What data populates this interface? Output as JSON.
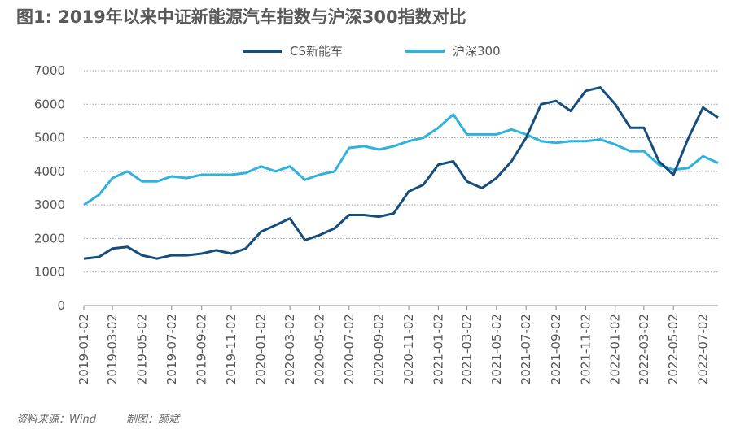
{
  "chart_data": {
    "type": "line",
    "title": "图1: 2019年以来中证新能源汽车指数与沪深300指数对比",
    "source": "资料来源：Wind",
    "credit": "制图：颜斌",
    "x": [
      "2019-01-02",
      "2019-02-02",
      "2019-03-02",
      "2019-04-02",
      "2019-05-02",
      "2019-06-02",
      "2019-07-02",
      "2019-08-02",
      "2019-09-02",
      "2019-10-02",
      "2019-11-02",
      "2019-12-02",
      "2020-01-02",
      "2020-02-02",
      "2020-03-02",
      "2020-04-02",
      "2020-05-02",
      "2020-06-02",
      "2020-07-02",
      "2020-08-02",
      "2020-09-02",
      "2020-10-02",
      "2020-11-02",
      "2020-12-02",
      "2021-01-02",
      "2021-02-02",
      "2021-03-02",
      "2021-04-02",
      "2021-05-02",
      "2021-06-02",
      "2021-07-02",
      "2021-08-02",
      "2021-09-02",
      "2021-10-02",
      "2021-11-02",
      "2021-12-02",
      "2022-01-02",
      "2022-02-02",
      "2022-03-02",
      "2022-04-02",
      "2022-05-02",
      "2022-06-02",
      "2022-07-02",
      "2022-08-02"
    ],
    "series": [
      {
        "name": "CS新能车",
        "color": "#154d7c",
        "values": [
          1400,
          1450,
          1700,
          1750,
          1500,
          1400,
          1500,
          1500,
          1550,
          1650,
          1550,
          1700,
          2200,
          2400,
          2600,
          1950,
          2100,
          2300,
          2700,
          2700,
          2650,
          2750,
          3400,
          3600,
          4200,
          4300,
          3700,
          3500,
          3800,
          4300,
          5000,
          6000,
          6100,
          5800,
          6400,
          6500,
          6000,
          5300,
          5300,
          4300,
          3900,
          5000,
          5900,
          5600
        ]
      },
      {
        "name": "沪深300",
        "color": "#2fb2de",
        "values": [
          3000,
          3300,
          3800,
          4000,
          3700,
          3700,
          3850,
          3800,
          3900,
          3900,
          3900,
          3950,
          4150,
          4000,
          4150,
          3750,
          3900,
          4000,
          4700,
          4750,
          4650,
          4750,
          4900,
          5000,
          5300,
          5700,
          5100,
          5100,
          5100,
          5250,
          5100,
          4900,
          4850,
          4900,
          4900,
          4950,
          4800,
          4600,
          4600,
          4200,
          4050,
          4100,
          4450,
          4250
        ]
      }
    ],
    "xlim": [
      "2019-01-02",
      "2022-08-02"
    ],
    "xticks": [
      "2019-01-02",
      "2019-03-02",
      "2019-05-02",
      "2019-07-02",
      "2019-09-02",
      "2019-11-02",
      "2020-01-02",
      "2020-03-02",
      "2020-05-02",
      "2020-07-02",
      "2020-09-02",
      "2020-11-02",
      "2021-01-02",
      "2021-03-02",
      "2021-05-02",
      "2021-07-02",
      "2021-09-02",
      "2021-11-02",
      "2022-01-02",
      "2022-03-02",
      "2022-05-02",
      "2022-07-02"
    ],
    "ylim": [
      0,
      7000
    ],
    "yticks": [
      0,
      1000,
      2000,
      3000,
      4000,
      5000,
      6000,
      7000
    ],
    "grid": true,
    "legend": "top"
  }
}
